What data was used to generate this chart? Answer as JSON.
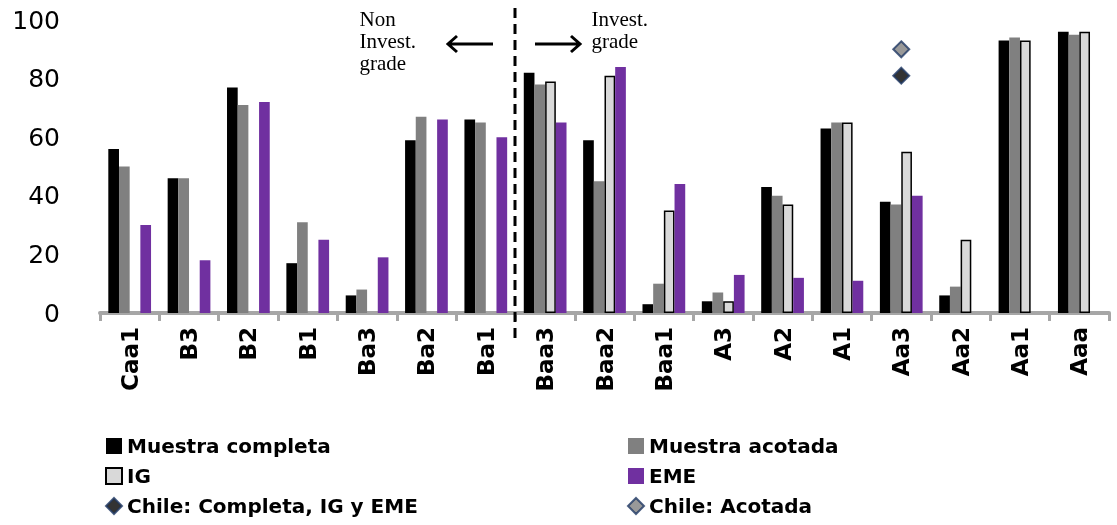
{
  "chart_data": {
    "type": "bar",
    "categories": [
      "Caa1",
      "B3",
      "B2",
      "B1",
      "Ba3",
      "Ba2",
      "Ba1",
      "Baa3",
      "Baa2",
      "Baa1",
      "A3",
      "A2",
      "A1",
      "Aa3",
      "Aa2",
      "Aa1",
      "Aaa"
    ],
    "series": [
      {
        "name": "Muestra completa",
        "color": "#000000",
        "values": [
          56,
          46,
          77,
          17,
          6,
          59,
          66,
          82,
          59,
          3,
          4,
          43,
          63,
          38,
          6,
          93,
          96
        ]
      },
      {
        "name": "Muestra acotada",
        "color": "#808080",
        "values": [
          50,
          46,
          71,
          31,
          8,
          67,
          65,
          78,
          45,
          10,
          7,
          40,
          65,
          37,
          9,
          94,
          95
        ]
      },
      {
        "name": "IG",
        "color": "#d9d9d9",
        "values": [
          null,
          null,
          null,
          null,
          null,
          null,
          null,
          79,
          81,
          35,
          4,
          37,
          65,
          55,
          25,
          93,
          96
        ]
      },
      {
        "name": "EME",
        "color": "#7030a0",
        "values": [
          30,
          18,
          72,
          25,
          19,
          66,
          60,
          65,
          84,
          44,
          13,
          12,
          11,
          40,
          null,
          null,
          null
        ]
      },
      {
        "name": "Chile: Completa, IG y EME",
        "type": "scatter",
        "color": "#000000",
        "x": [
          "Aa3"
        ],
        "values": [
          81
        ]
      },
      {
        "name": "Chile: Acotada",
        "type": "scatter",
        "color": "#808080",
        "x": [
          "Aa3"
        ],
        "values": [
          90
        ]
      }
    ],
    "ylim": [
      0,
      100
    ],
    "yticks": [
      0,
      20,
      40,
      60,
      80,
      100
    ],
    "grid": false,
    "legend": "bottom",
    "marker": "diamond",
    "annotations": [
      "Non Invest. grade",
      "Invest. grade"
    ]
  }
}
